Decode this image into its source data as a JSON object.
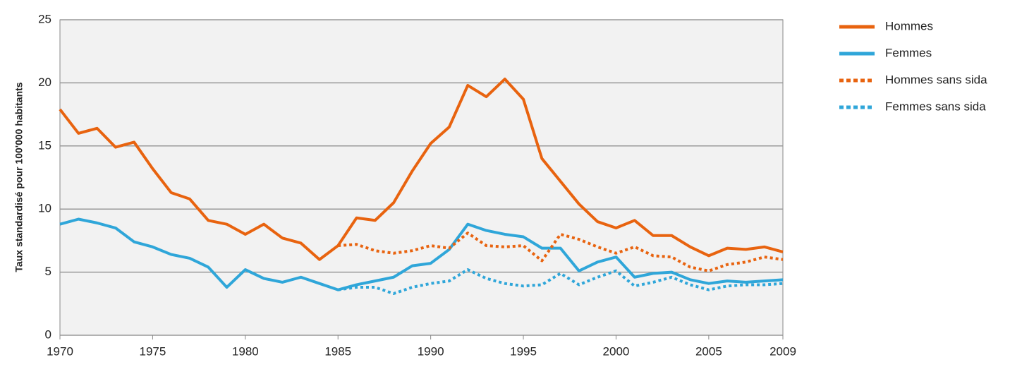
{
  "chart_data": {
    "type": "line",
    "ylabel": "Taux standardisé pour 100'000 habitants",
    "x": [
      1970,
      1971,
      1972,
      1973,
      1974,
      1975,
      1976,
      1977,
      1978,
      1979,
      1980,
      1981,
      1982,
      1983,
      1984,
      1985,
      1986,
      1987,
      1988,
      1989,
      1990,
      1991,
      1992,
      1993,
      1994,
      1995,
      1996,
      1997,
      1998,
      1999,
      2000,
      2001,
      2002,
      2003,
      2004,
      2005,
      2006,
      2007,
      2008,
      2009
    ],
    "series": [
      {
        "name": "Hommes",
        "color": "#e8630f",
        "dash": false,
        "values": [
          17.9,
          16.0,
          16.4,
          14.9,
          15.3,
          13.2,
          11.3,
          10.8,
          9.1,
          8.8,
          8.0,
          8.8,
          7.7,
          7.3,
          6.0,
          7.1,
          9.3,
          9.1,
          10.5,
          13.0,
          15.2,
          16.5,
          19.8,
          18.9,
          20.3,
          18.7,
          14.0,
          12.2,
          10.4,
          9.0,
          8.5,
          9.1,
          7.9,
          7.9,
          7.0,
          6.3,
          6.9,
          6.8,
          7.0,
          6.6
        ]
      },
      {
        "name": "Femmes",
        "color": "#2fa6d9",
        "dash": false,
        "values": [
          8.8,
          9.2,
          8.9,
          8.5,
          7.4,
          7.0,
          6.4,
          6.1,
          5.4,
          3.8,
          5.2,
          4.5,
          4.2,
          4.6,
          4.1,
          3.6,
          4.0,
          4.3,
          4.6,
          5.5,
          5.7,
          6.8,
          8.8,
          8.3,
          8.0,
          7.8,
          6.9,
          6.9,
          5.1,
          5.8,
          6.2,
          4.6,
          4.9,
          5.0,
          4.4,
          4.1,
          4.3,
          4.2,
          4.3,
          4.4
        ]
      },
      {
        "name": "Hommes sans sida",
        "color": "#e8630f",
        "dash": true,
        "values": [
          null,
          null,
          null,
          null,
          null,
          null,
          null,
          null,
          null,
          null,
          null,
          null,
          null,
          null,
          null,
          7.1,
          7.2,
          6.7,
          6.5,
          6.7,
          7.1,
          6.9,
          8.1,
          7.1,
          7.0,
          7.1,
          5.9,
          8.0,
          7.6,
          7.0,
          6.5,
          7.0,
          6.3,
          6.2,
          5.4,
          5.1,
          5.6,
          5.8,
          6.2,
          6.0
        ]
      },
      {
        "name": "Femmes sans sida",
        "color": "#2fa6d9",
        "dash": true,
        "values": [
          null,
          null,
          null,
          null,
          null,
          null,
          null,
          null,
          null,
          null,
          null,
          null,
          null,
          null,
          null,
          3.6,
          3.8,
          3.8,
          3.3,
          3.8,
          4.1,
          4.3,
          5.2,
          4.5,
          4.1,
          3.9,
          4.0,
          4.9,
          4.0,
          4.6,
          5.1,
          3.9,
          4.2,
          4.6,
          4.0,
          3.6,
          3.9,
          4.0,
          4.0,
          4.1
        ]
      }
    ],
    "xlim": [
      1970,
      2009
    ],
    "xticks": [
      1970,
      1975,
      1980,
      1985,
      1990,
      1995,
      2000,
      2005,
      2009
    ],
    "ylim": [
      0,
      25
    ],
    "yticks": [
      0,
      5,
      10,
      15,
      20,
      25
    ],
    "grid": true,
    "legend": "right"
  }
}
